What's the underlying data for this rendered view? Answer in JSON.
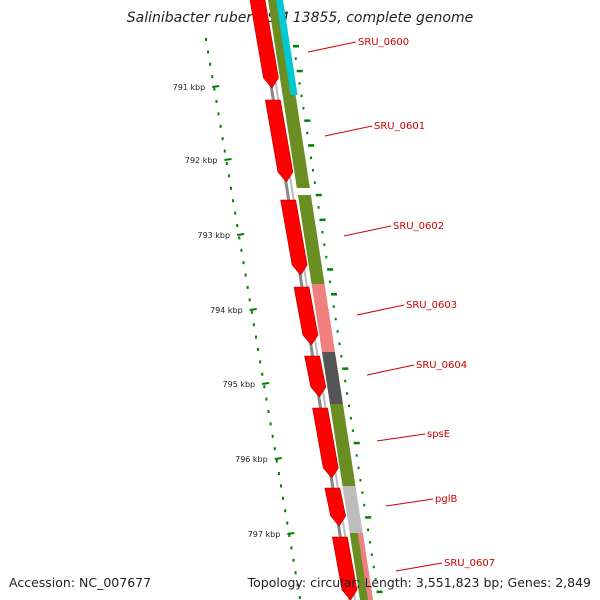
{
  "title": "Salinibacter ruber DSM 13855, complete genome",
  "footer": {
    "accession": "Accession: NC_007677",
    "summary": "Topology: circular; Length: 3,551,823 bp; Genes: 2,849"
  },
  "kbp_ticks": [
    "791 kbp",
    "792 kbp",
    "793 kbp",
    "794 kbp",
    "795 kbp",
    "796 kbp",
    "797 kbp"
  ],
  "gene_labels": [
    "SRU_0600",
    "SRU_0601",
    "SRU_0602",
    "SRU_0603",
    "SRU_0604",
    "spsE",
    "pglB",
    "SRU_0607"
  ],
  "colors": {
    "forward_cds": "#ff0000",
    "cog_green": "#6b8e23",
    "cog_cyan": "#00c8d2",
    "cog_pink": "#f08080",
    "cog_darkgray": "#555555",
    "cog_lightgray": "#bdbdbd",
    "tick_green": "#008000",
    "backbone": "#777777",
    "label_red": "#cc0000"
  }
}
